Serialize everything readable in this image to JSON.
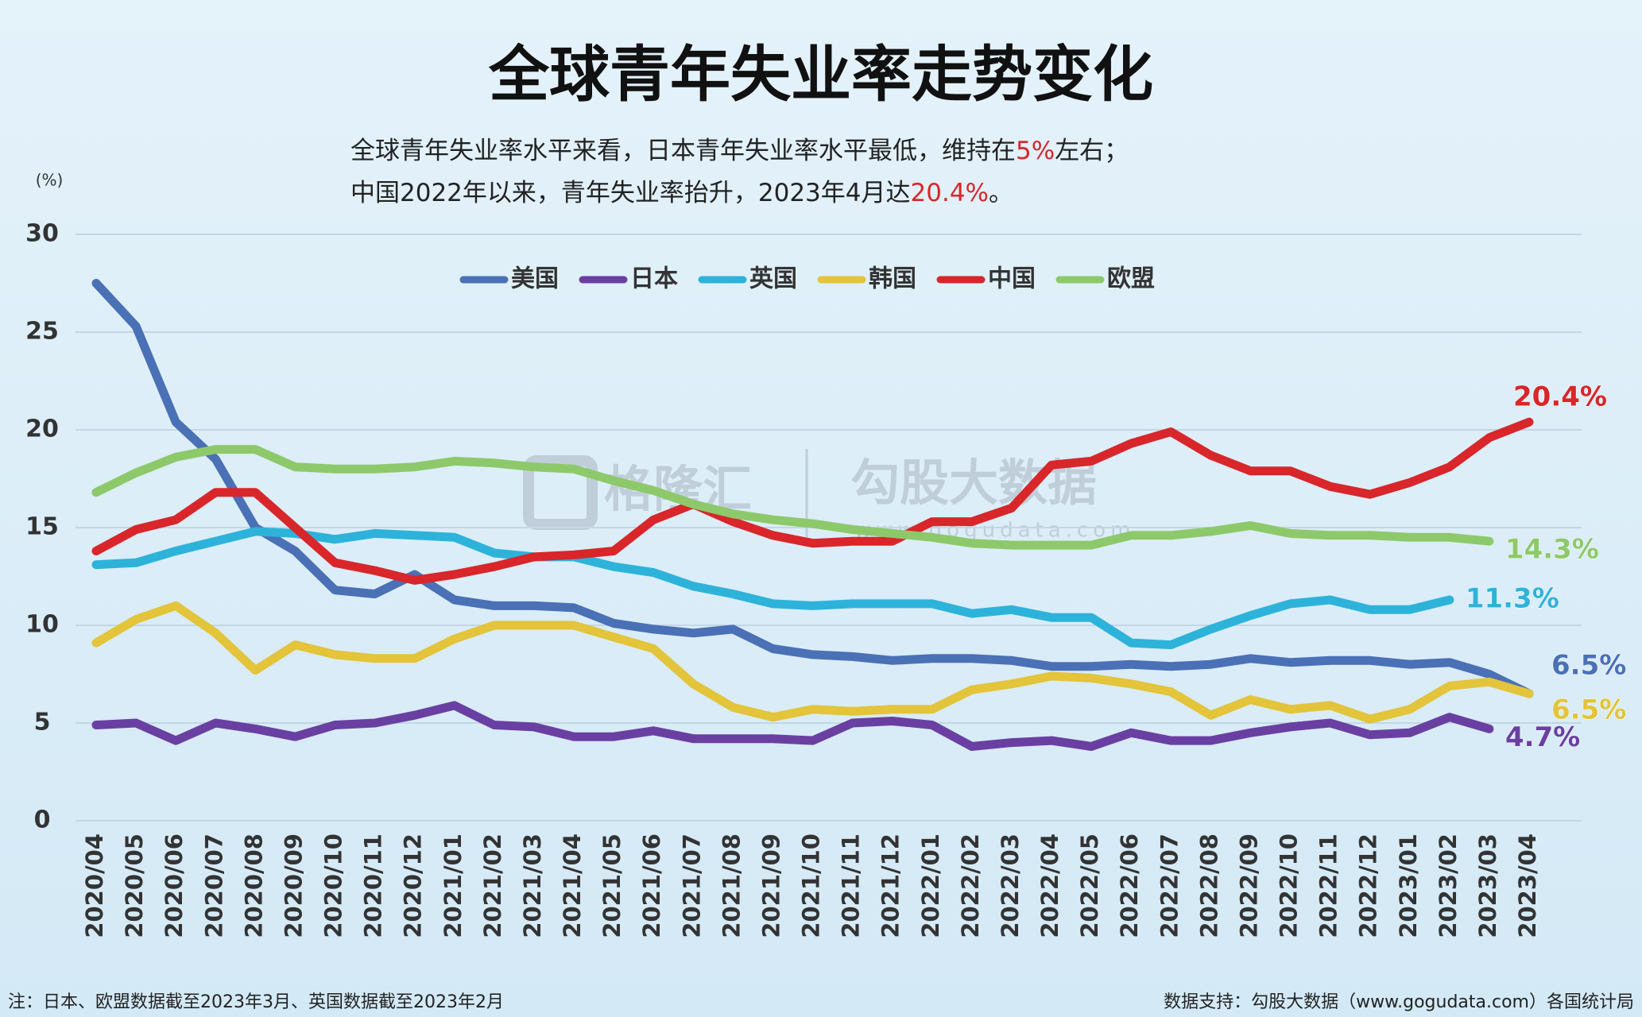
{
  "chart_data": {
    "type": "line",
    "title": "全球青年失业率走势变化",
    "subtitle": [
      [
        "全球青年失业率水平来看，日本青年失业率水平最低，维持在",
        "5%",
        "左右；"
      ],
      [
        "中国2022年以来，青年失业率抬升，2023年4月达",
        "20.4%",
        "。"
      ]
    ],
    "y_unit": "(%)",
    "categories": [
      "2020/04",
      "2020/05",
      "2020/06",
      "2020/07",
      "2020/08",
      "2020/09",
      "2020/10",
      "2020/11",
      "2020/12",
      "2021/01",
      "2021/02",
      "2021/03",
      "2021/04",
      "2021/05",
      "2021/06",
      "2021/07",
      "2021/08",
      "2021/09",
      "2021/10",
      "2021/11",
      "2021/12",
      "2022/01",
      "2022/02",
      "2022/03",
      "2022/04",
      "2022/05",
      "2022/06",
      "2022/07",
      "2022/08",
      "2022/09",
      "2022/10",
      "2022/11",
      "2022/12",
      "2023/01",
      "2023/02",
      "2023/03",
      "2023/04"
    ],
    "series": [
      {
        "name": "美国",
        "color": "#4a70b6",
        "values": [
          27.5,
          25.3,
          20.4,
          18.5,
          15.0,
          13.8,
          11.8,
          11.6,
          12.6,
          11.3,
          11.0,
          11.0,
          10.9,
          10.1,
          9.8,
          9.6,
          9.8,
          8.8,
          8.5,
          8.4,
          8.2,
          8.3,
          8.3,
          8.2,
          7.9,
          7.9,
          8.0,
          7.9,
          8.0,
          8.3,
          8.1,
          8.2,
          8.2,
          8.0,
          8.1,
          7.5,
          6.5
        ],
        "value_labels": [
          null,
          null,
          null,
          null,
          null,
          null,
          null,
          null,
          null,
          null,
          null,
          null,
          null,
          null,
          null,
          null,
          null,
          null,
          null,
          null,
          null,
          null,
          null,
          null,
          null,
          null,
          null,
          null,
          null,
          null,
          null,
          null,
          null,
          null,
          null,
          null,
          "6.5%"
        ]
      },
      {
        "name": "日本",
        "color": "#6a3fa2",
        "values": [
          4.9,
          5.0,
          4.1,
          5.0,
          4.7,
          4.3,
          4.9,
          5.0,
          5.4,
          5.9,
          4.9,
          4.8,
          4.3,
          4.3,
          4.6,
          4.2,
          4.2,
          4.2,
          4.1,
          5.0,
          5.1,
          4.9,
          3.8,
          4.0,
          4.1,
          3.8,
          4.5,
          4.1,
          4.1,
          4.5,
          4.8,
          5.0,
          4.4,
          4.5,
          5.3,
          4.7,
          null
        ],
        "value_labels": [
          null,
          null,
          null,
          null,
          null,
          null,
          null,
          null,
          null,
          null,
          null,
          null,
          null,
          null,
          null,
          null,
          null,
          null,
          null,
          null,
          null,
          null,
          null,
          null,
          null,
          null,
          null,
          null,
          null,
          null,
          null,
          null,
          null,
          null,
          null,
          "4.7%",
          null
        ]
      },
      {
        "name": "英国",
        "color": "#2db3da",
        "values": [
          13.1,
          13.2,
          13.8,
          14.3,
          14.8,
          14.7,
          14.4,
          14.7,
          14.6,
          14.5,
          13.7,
          13.5,
          13.5,
          13.0,
          12.7,
          12.0,
          11.6,
          11.1,
          11.0,
          11.1,
          11.1,
          11.1,
          10.6,
          10.8,
          10.4,
          10.4,
          9.1,
          9.0,
          9.8,
          10.5,
          11.1,
          11.3,
          10.8,
          10.8,
          11.3,
          null,
          null
        ],
        "value_labels": [
          null,
          null,
          null,
          null,
          null,
          null,
          null,
          null,
          null,
          null,
          null,
          null,
          null,
          null,
          null,
          null,
          null,
          null,
          null,
          null,
          null,
          null,
          null,
          null,
          null,
          null,
          null,
          null,
          null,
          null,
          null,
          null,
          null,
          null,
          "11.3%",
          null,
          null
        ]
      },
      {
        "name": "韩国",
        "color": "#e3c43a",
        "values": [
          9.1,
          10.3,
          11.0,
          9.6,
          7.7,
          9.0,
          8.5,
          8.3,
          8.3,
          9.3,
          10.0,
          10.0,
          10.0,
          9.4,
          8.8,
          7.0,
          5.8,
          5.3,
          5.7,
          5.6,
          5.7,
          5.7,
          6.7,
          7.0,
          7.4,
          7.3,
          7.0,
          6.6,
          5.4,
          6.2,
          5.7,
          5.9,
          5.2,
          5.7,
          6.9,
          7.1,
          6.5
        ],
        "value_labels": [
          null,
          null,
          null,
          null,
          null,
          null,
          null,
          null,
          null,
          null,
          null,
          null,
          null,
          null,
          null,
          null,
          null,
          null,
          null,
          null,
          null,
          null,
          null,
          null,
          null,
          null,
          null,
          null,
          null,
          null,
          null,
          null,
          null,
          null,
          null,
          null,
          "6.5%"
        ]
      },
      {
        "name": "中国",
        "color": "#d8262a",
        "values": [
          13.8,
          14.9,
          15.4,
          16.8,
          16.8,
          15.0,
          13.2,
          12.8,
          12.3,
          12.6,
          13.0,
          13.5,
          13.6,
          13.8,
          15.4,
          16.2,
          15.3,
          14.6,
          14.2,
          14.3,
          14.3,
          15.3,
          15.3,
          16.0,
          18.2,
          18.4,
          19.3,
          19.9,
          18.7,
          17.9,
          17.9,
          17.1,
          16.7,
          17.3,
          18.1,
          19.6,
          20.4
        ],
        "value_labels": [
          null,
          null,
          null,
          null,
          null,
          null,
          null,
          null,
          null,
          null,
          null,
          null,
          null,
          null,
          null,
          null,
          null,
          null,
          null,
          null,
          null,
          null,
          null,
          null,
          null,
          null,
          null,
          null,
          null,
          null,
          null,
          null,
          null,
          null,
          null,
          null,
          "20.4%"
        ]
      },
      {
        "name": "欧盟",
        "color": "#8dc96a",
        "values": [
          16.8,
          17.8,
          18.6,
          19.0,
          19.0,
          18.1,
          18.0,
          18.0,
          18.1,
          18.4,
          18.3,
          18.1,
          18.0,
          17.4,
          16.9,
          16.2,
          15.7,
          15.4,
          15.2,
          14.9,
          14.7,
          14.5,
          14.2,
          14.1,
          14.1,
          14.1,
          14.6,
          14.6,
          14.8,
          15.1,
          14.7,
          14.6,
          14.6,
          14.5,
          14.5,
          14.3,
          null
        ],
        "value_labels": [
          null,
          null,
          null,
          null,
          null,
          null,
          null,
          null,
          null,
          null,
          null,
          null,
          null,
          null,
          null,
          null,
          null,
          null,
          null,
          null,
          null,
          null,
          null,
          null,
          null,
          null,
          null,
          null,
          null,
          null,
          null,
          null,
          null,
          null,
          null,
          "14.3%",
          null
        ]
      }
    ],
    "ylim": [
      0,
      30
    ],
    "yticks": [
      0,
      5,
      10,
      15,
      20,
      25,
      30
    ],
    "grid": true,
    "legend": "top",
    "watermark": [
      "格隆汇",
      "勾股大数据",
      "www.gogudata.com"
    ],
    "footnote_left": "注：日本、欧盟数据截至2023年3月、英国数据截至2023年2月",
    "footnote_right": "数据支持：勾股大数据（www.gogudata.com）各国统计局"
  }
}
